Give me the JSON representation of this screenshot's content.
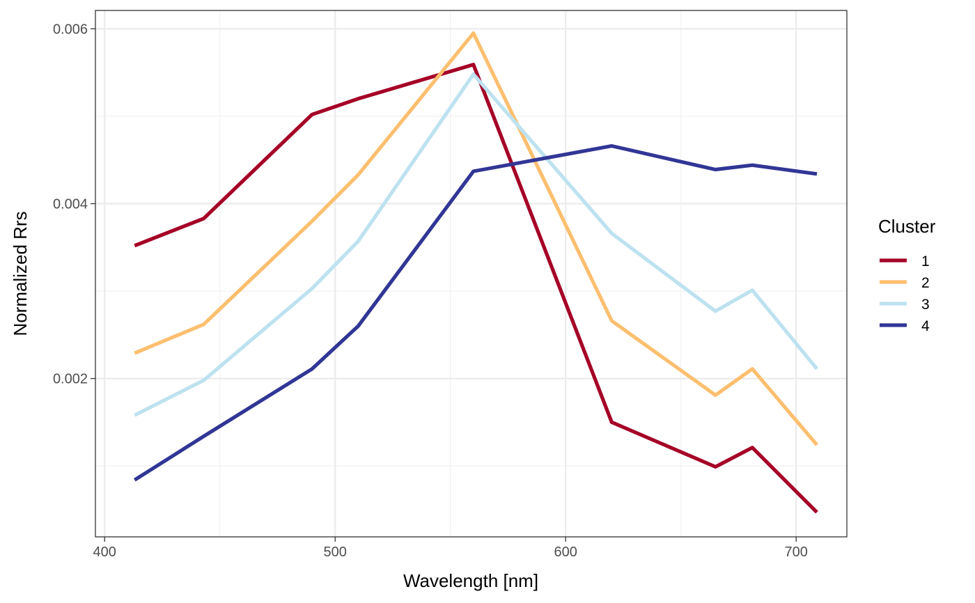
{
  "chart_data": {
    "type": "line",
    "title": "",
    "xlabel": "Wavelength [nm]",
    "ylabel": "Normalized Rrs",
    "xlim": [
      396,
      722
    ],
    "ylim": [
      0.000189,
      0.00621
    ],
    "x_ticks": [
      400,
      500,
      600,
      700
    ],
    "x_tick_labels": [
      "400",
      "500",
      "600",
      "700"
    ],
    "x_minor_ticks": [
      450,
      550,
      650
    ],
    "y_ticks": [
      0.002,
      0.004,
      0.006
    ],
    "y_tick_labels": [
      "0.002",
      "0.004",
      "0.006"
    ],
    "y_minor_ticks": [
      0.001,
      0.003,
      0.005
    ],
    "grid": true,
    "legend_position": "right",
    "legend_title": "Cluster",
    "x": [
      413,
      443,
      490,
      510,
      560,
      620,
      665,
      681,
      709
    ],
    "series": [
      {
        "name": "1",
        "color": "#a50026",
        "values": [
          0.00352,
          0.00383,
          0.00502,
          0.0052,
          0.00559,
          0.0015,
          0.00099,
          0.00121,
          0.00047
        ]
      },
      {
        "name": "2",
        "color": "#fdbf6f",
        "values": [
          0.00229,
          0.00262,
          0.0038,
          0.00433,
          0.00595,
          0.00266,
          0.00181,
          0.00211,
          0.00124
        ]
      },
      {
        "name": "3",
        "color": "#bde2ef",
        "values": [
          0.00158,
          0.00198,
          0.00303,
          0.00357,
          0.00548,
          0.00366,
          0.00277,
          0.00301,
          0.00211
        ]
      },
      {
        "name": "4",
        "color": "#313695",
        "values": [
          0.00084,
          0.00134,
          0.00211,
          0.0026,
          0.00437,
          0.00466,
          0.00439,
          0.00444,
          0.00434
        ]
      }
    ]
  }
}
